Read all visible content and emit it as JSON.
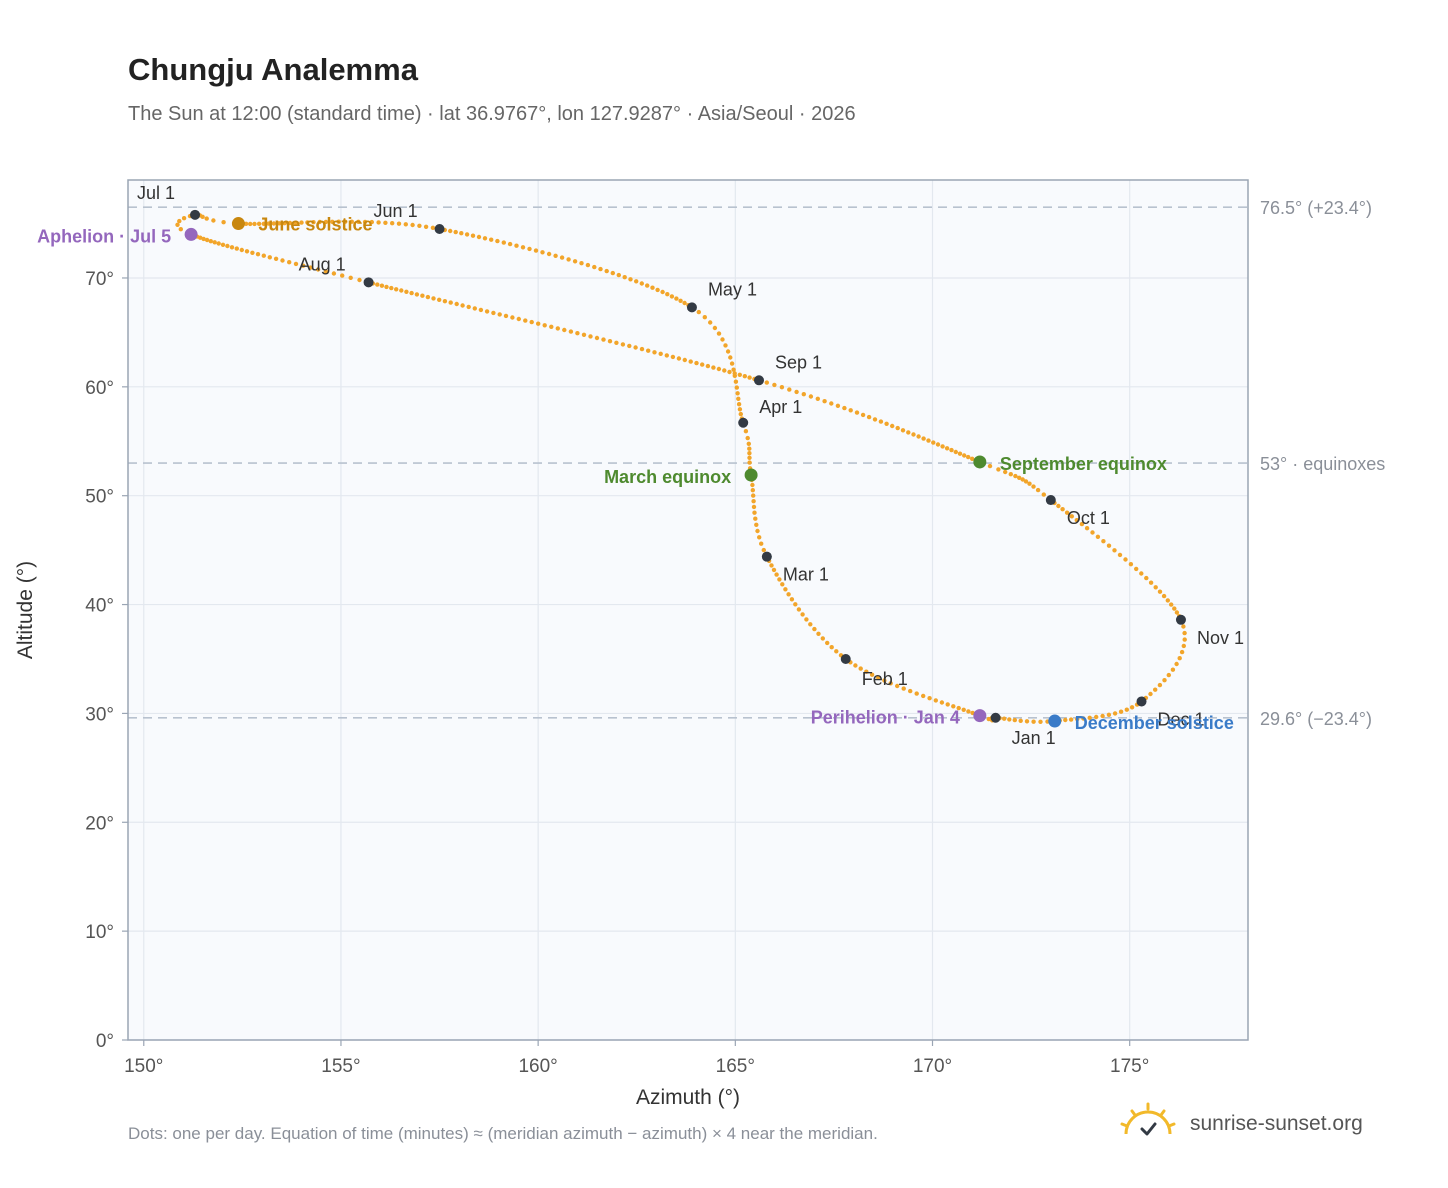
{
  "title": "Chungju Analemma",
  "subtitle": "The Sun at 12:00 (standard time) · lat 36.9767°, lon 127.9287° · Asia/Seoul · 2026",
  "footnote": "Dots: one per day. Equation of time (minutes) ≈ (meridian azimuth − azimuth) × 4 near the meridian.",
  "brand": {
    "name": "sunrise-sunset.org",
    "icon": "sun-check-icon"
  },
  "chart_data": {
    "type": "scatter",
    "xlabel": "Azimuth (°)",
    "ylabel": "Altitude (°)",
    "xlim": [
      149.6,
      178
    ],
    "ylim": [
      0,
      79
    ],
    "x_ticks": [
      150,
      155,
      160,
      165,
      170,
      175
    ],
    "x_tick_labels": [
      "150°",
      "155°",
      "160°",
      "165°",
      "170°",
      "175°"
    ],
    "y_ticks": [
      0,
      10,
      20,
      30,
      40,
      50,
      60,
      70
    ],
    "y_tick_labels": [
      "0°",
      "10°",
      "20°",
      "30°",
      "40°",
      "50°",
      "60°",
      "70°"
    ],
    "grid": true,
    "colors": {
      "curve": "#f2a52a",
      "month_marker": "#333a44",
      "guide": "#b8c2cf",
      "plot_bg": "#f8fafd",
      "frame": "#9aa5b4"
    },
    "reference_lines": [
      {
        "y": 76.5,
        "label": "76.5° (+23.4°)"
      },
      {
        "y": 53,
        "label": "53° · equinoxes"
      },
      {
        "y": 29.6,
        "label": "29.6° (−23.4°)"
      }
    ],
    "month_markers": [
      {
        "label": "Jan 1",
        "az": 171.6,
        "alt": 29.6
      },
      {
        "label": "Feb 1",
        "az": 167.8,
        "alt": 35.0
      },
      {
        "label": "Mar 1",
        "az": 165.8,
        "alt": 44.4
      },
      {
        "label": "Apr 1",
        "az": 165.2,
        "alt": 56.7
      },
      {
        "label": "May 1",
        "az": 163.9,
        "alt": 67.3
      },
      {
        "label": "Jun 1",
        "az": 157.5,
        "alt": 74.5
      },
      {
        "label": "Jul 1",
        "az": 151.3,
        "alt": 75.8
      },
      {
        "label": "Aug 1",
        "az": 155.7,
        "alt": 69.6
      },
      {
        "label": "Sep 1",
        "az": 165.6,
        "alt": 60.6
      },
      {
        "label": "Oct 1",
        "az": 173.0,
        "alt": 49.6
      },
      {
        "label": "Nov 1",
        "az": 176.3,
        "alt": 38.6
      },
      {
        "label": "Dec 1",
        "az": 175.3,
        "alt": 31.1
      }
    ],
    "events": [
      {
        "label": "June solstice",
        "az": 152.4,
        "alt": 75.0,
        "color": "#c8870f"
      },
      {
        "label": "Aphelion · Jul 5",
        "az": 151.2,
        "alt": 74.0,
        "color": "#9467bd"
      },
      {
        "label": "March equinox",
        "az": 165.4,
        "alt": 51.9,
        "color": "#4e8a2f"
      },
      {
        "label": "September equinox",
        "az": 171.2,
        "alt": 53.1,
        "color": "#4e8a2f"
      },
      {
        "label": "Perihelion · Jan 4",
        "az": 171.2,
        "alt": 29.8,
        "color": "#9467bd"
      },
      {
        "label": "December solstice",
        "az": 173.1,
        "alt": 29.3,
        "color": "#3a7bc8"
      }
    ]
  }
}
